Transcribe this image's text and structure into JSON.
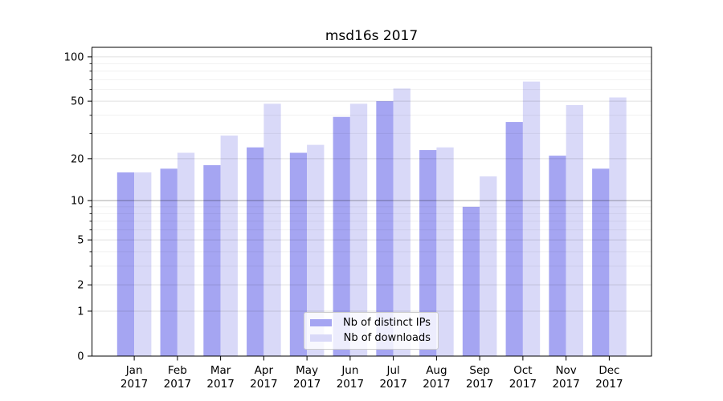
{
  "title": "msd16s 2017",
  "legend": {
    "items": [
      {
        "label": "Nb of distinct IPs",
        "color_key": "ips"
      },
      {
        "label": "Nb of downloads",
        "color_key": "downloads"
      }
    ]
  },
  "colors": {
    "ips": "#a5a5f2",
    "downloads": "#d9d9f8",
    "axis": "#000000",
    "grid_major": "rgba(0,0,0,0.12)",
    "grid_minor": "rgba(0,0,0,0.055)",
    "grid_emphasis": "rgba(0,0,0,0.35)",
    "legend_border": "#cccccc",
    "legend_bg": "rgba(255,255,255,0.8)"
  },
  "chart_data": {
    "type": "bar",
    "title": "msd16s 2017",
    "categories": [
      "Jan",
      "Feb",
      "Mar",
      "Apr",
      "May",
      "Jun",
      "Jul",
      "Aug",
      "Sep",
      "Oct",
      "Nov",
      "Dec"
    ],
    "x_tick_year": "2017",
    "series": [
      {
        "name": "Nb of distinct IPs",
        "color_key": "ips",
        "values": [
          16,
          17,
          18,
          24,
          22,
          39,
          50,
          23,
          9,
          36,
          21,
          17
        ]
      },
      {
        "name": "Nb of downloads",
        "color_key": "downloads",
        "values": [
          16,
          22,
          29,
          48,
          25,
          48,
          61,
          24,
          15,
          68,
          47,
          53
        ]
      }
    ],
    "yscale": "log1p",
    "ylim": [
      0,
      116
    ],
    "yticks_major": [
      0,
      1,
      2,
      5,
      10,
      20,
      50,
      100
    ],
    "yticks_minor": [
      3,
      4,
      6,
      7,
      8,
      9,
      30,
      40,
      60,
      70,
      80,
      90
    ],
    "emphasized_gridline": 10,
    "grid": true,
    "legend_position": "lower center"
  }
}
